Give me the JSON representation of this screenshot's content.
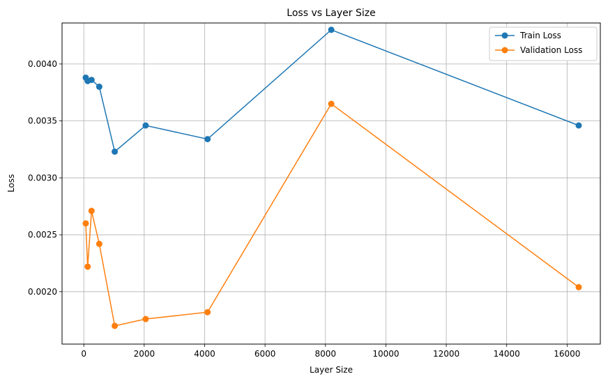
{
  "chart_data": {
    "type": "line",
    "title": "Loss vs Layer Size",
    "xlabel": "Layer Size",
    "ylabel": "Loss",
    "xlim": [
      -720,
      17100
    ],
    "ylim": [
      0.00154,
      0.00436
    ],
    "xticks": [
      0,
      2000,
      4000,
      6000,
      8000,
      10000,
      12000,
      14000,
      16000
    ],
    "yticks": [
      0.002,
      0.0025,
      0.003,
      0.0035,
      0.004
    ],
    "xtick_labels": [
      "0",
      "2000",
      "4000",
      "6000",
      "8000",
      "10000",
      "12000",
      "14000",
      "16000"
    ],
    "ytick_labels": [
      "0.0020",
      "0.0025",
      "0.0030",
      "0.0035",
      "0.0040"
    ],
    "grid": true,
    "legend_position": "top-right",
    "x": [
      64,
      128,
      256,
      512,
      1024,
      2048,
      4096,
      8192,
      16384
    ],
    "series": [
      {
        "name": "Train Loss",
        "color": "#1f77b4",
        "values": [
          0.00388,
          0.00385,
          0.00386,
          0.0038,
          0.00323,
          0.00346,
          0.00334,
          0.0043,
          0.00346
        ]
      },
      {
        "name": "Validation Loss",
        "color": "#ff7f0e",
        "values": [
          0.0026,
          0.00222,
          0.00271,
          0.00242,
          0.0017,
          0.00176,
          0.00182,
          0.00365,
          0.00204
        ]
      }
    ]
  }
}
